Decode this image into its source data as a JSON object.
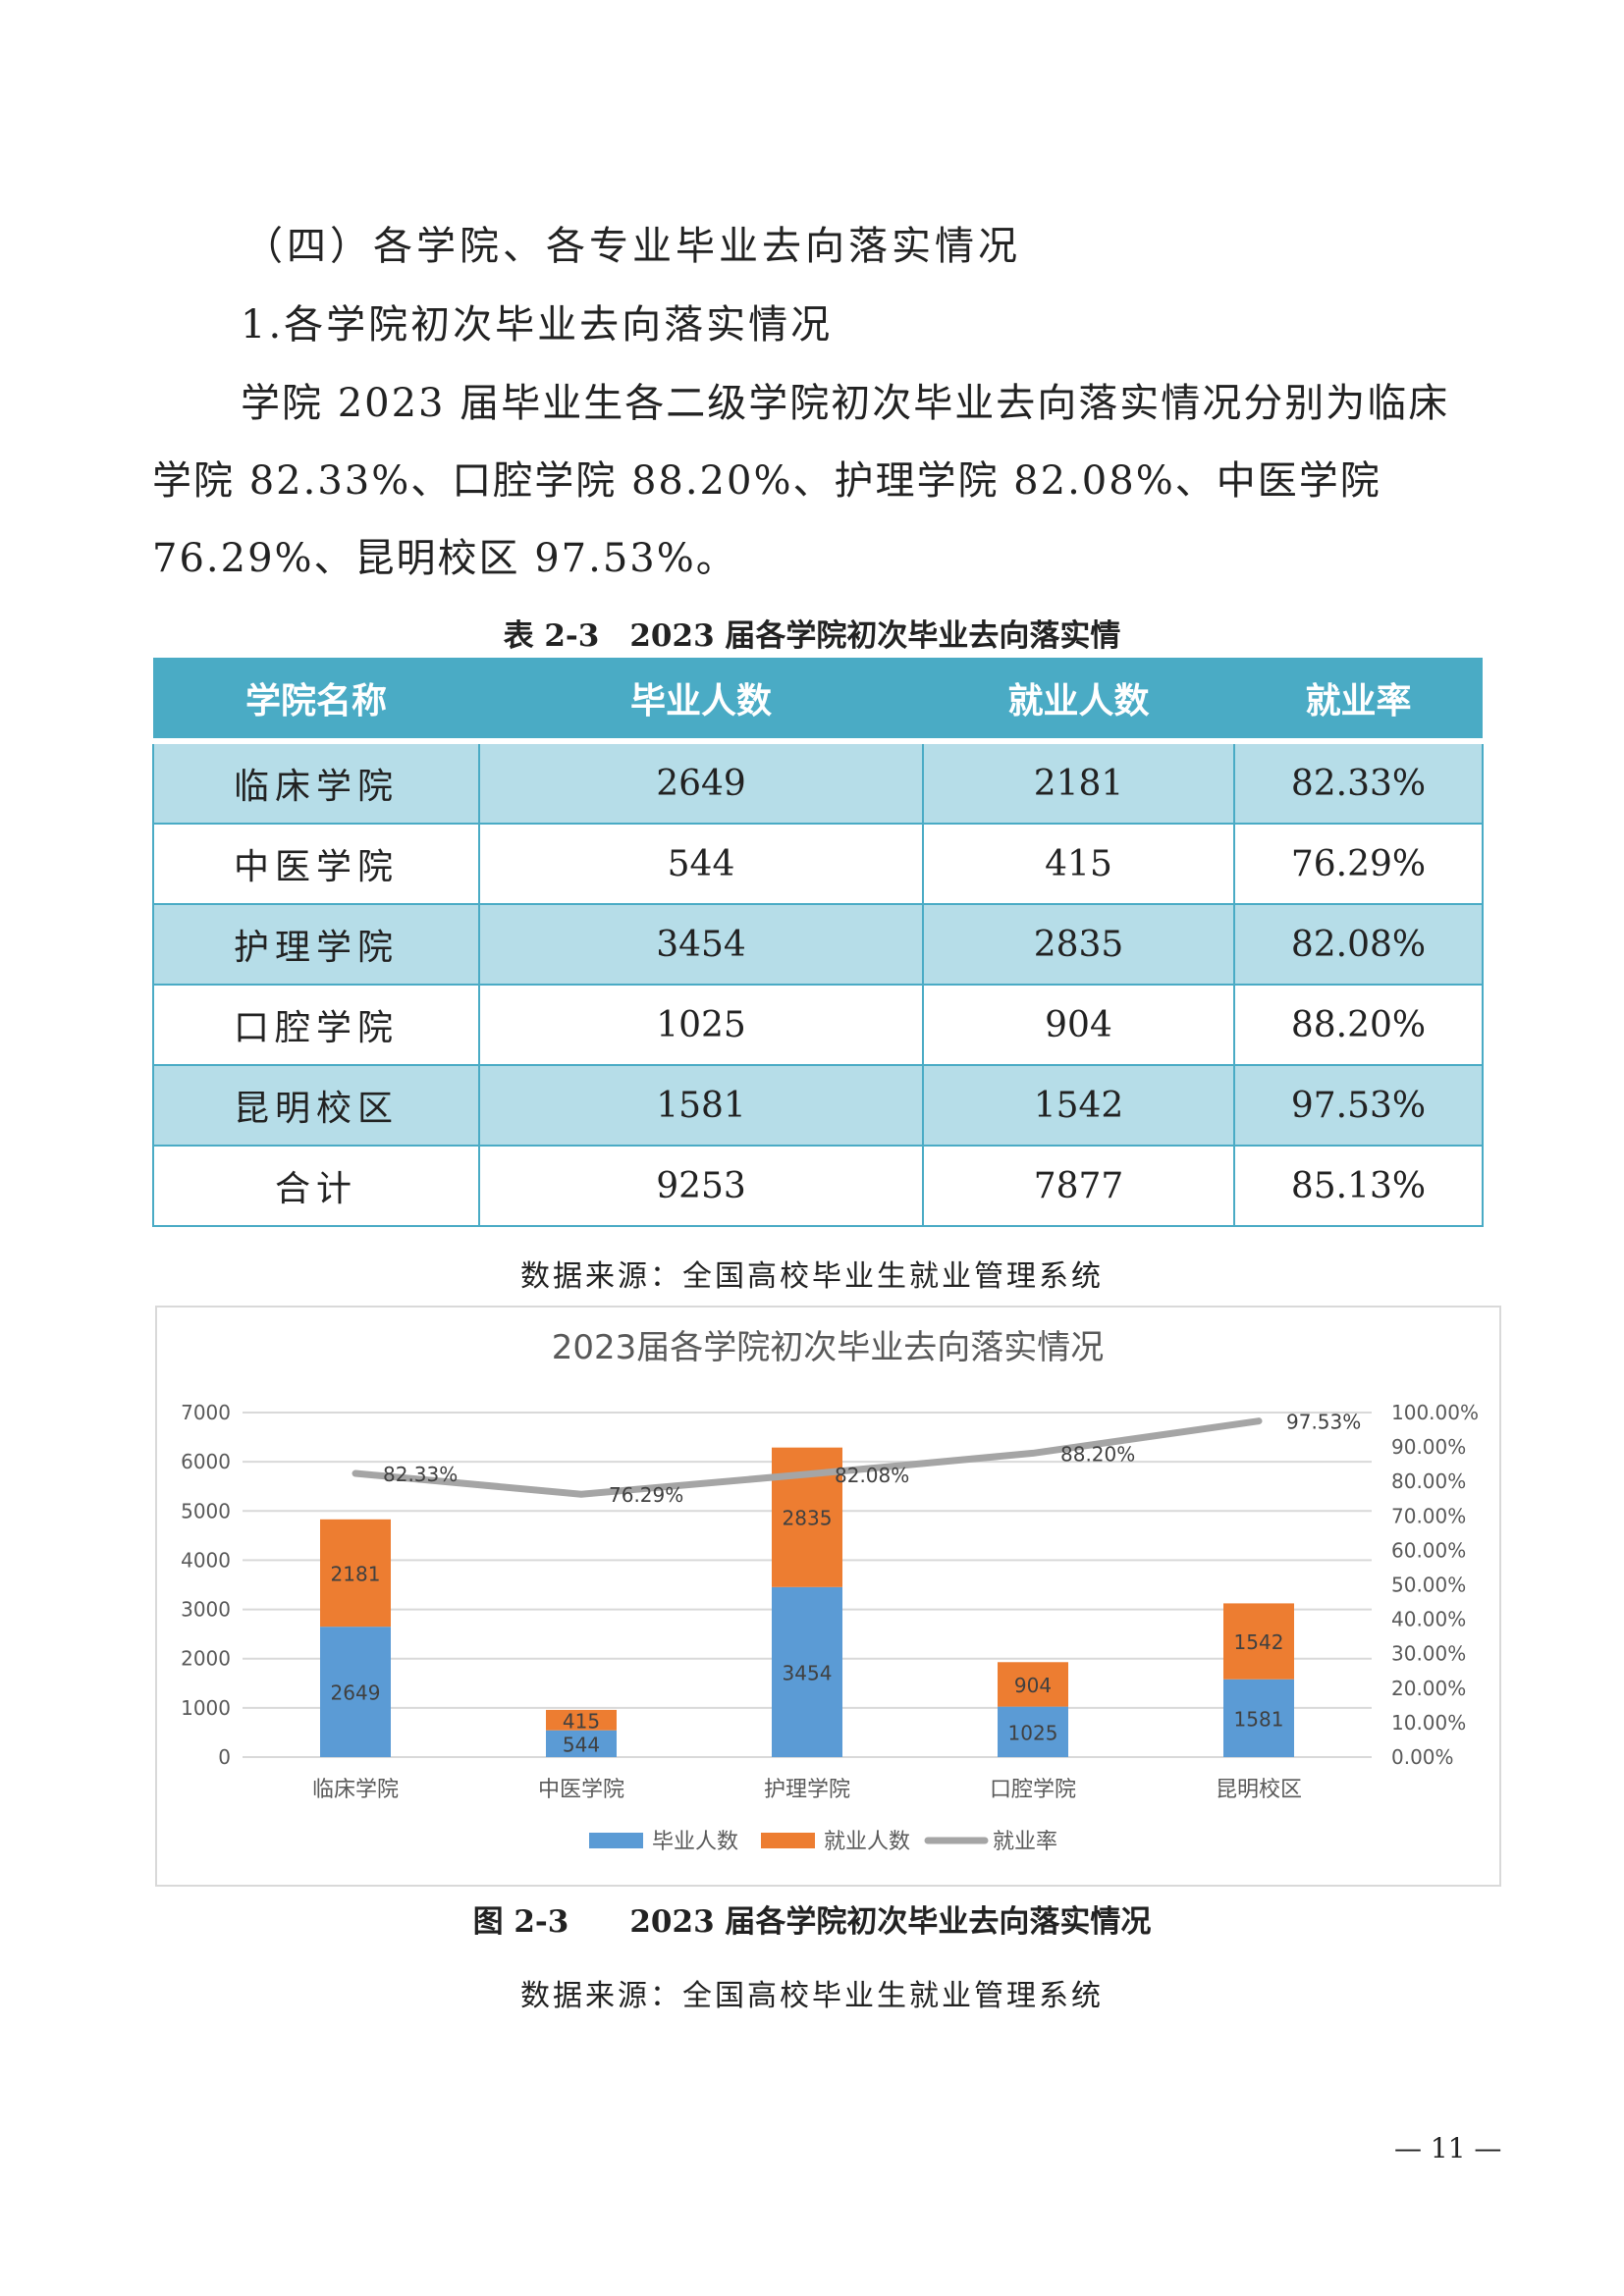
{
  "heading": "（四）各学院、各专业毕业去向落实情况",
  "subheading": "1.各学院初次毕业去向落实情况",
  "paragraph": "学院 2023 届毕业生各二级学院初次毕业去向落实情况分别为临床学院 82.33%、口腔学院 88.20%、护理学院 82.08%、中医学院 76.29%、昆明校区 97.53%。",
  "table": {
    "caption": "表 2-3　2023 届各学院初次毕业去向落实情",
    "headers": [
      "学院名称",
      "毕业人数",
      "就业人数",
      "就业率"
    ],
    "rows": [
      [
        "临床学院",
        "2649",
        "2181",
        "82.33%"
      ],
      [
        "中医学院",
        "544",
        "415",
        "76.29%"
      ],
      [
        "护理学院",
        "3454",
        "2835",
        "82.08%"
      ],
      [
        "口腔学院",
        "1025",
        "904",
        "88.20%"
      ],
      [
        "昆明校区",
        "1581",
        "1542",
        "97.53%"
      ],
      [
        "合计",
        "9253",
        "7877",
        "85.13%"
      ]
    ],
    "source": "数据来源：全国高校毕业生就业管理系统",
    "header_color": "#4aabc5",
    "stripe_color": "#b6dde8"
  },
  "chart_data": {
    "type": "bar",
    "stacked": true,
    "title": "2023届各学院初次毕业去向落实情况",
    "categories": [
      "临床学院",
      "中医学院",
      "护理学院",
      "口腔学院",
      "昆明校区"
    ],
    "series": [
      {
        "name": "毕业人数",
        "type": "bar",
        "axis": "left",
        "color": "#5b9bd5",
        "values": [
          2649,
          544,
          3454,
          1025,
          1581
        ]
      },
      {
        "name": "就业人数",
        "type": "bar",
        "axis": "left",
        "color": "#ed7d31",
        "values": [
          2181,
          415,
          2835,
          904,
          1542
        ]
      },
      {
        "name": "就业率",
        "type": "line",
        "axis": "right",
        "color": "#a5a5a5",
        "values": [
          82.33,
          76.29,
          82.08,
          88.2,
          97.53
        ],
        "labels": [
          "82.33%",
          "76.29%",
          "82.08%",
          "88.20%",
          "97.53%"
        ]
      }
    ],
    "ylim": [
      0,
      7000
    ],
    "yticks": [
      "0",
      "1000",
      "2000",
      "3000",
      "4000",
      "5000",
      "6000",
      "7000"
    ],
    "y2lim": [
      0,
      100
    ],
    "y2ticks": [
      "0.00%",
      "10.00%",
      "20.00%",
      "30.00%",
      "40.00%",
      "50.00%",
      "60.00%",
      "70.00%",
      "80.00%",
      "90.00%",
      "100.00%"
    ],
    "grid": true,
    "legend": "bottom"
  },
  "figure_caption": "图 2-3　　2023 届各学院初次毕业去向落实情况",
  "figure_source": "数据来源：全国高校毕业生就业管理系统",
  "page_number": "— 11 —"
}
